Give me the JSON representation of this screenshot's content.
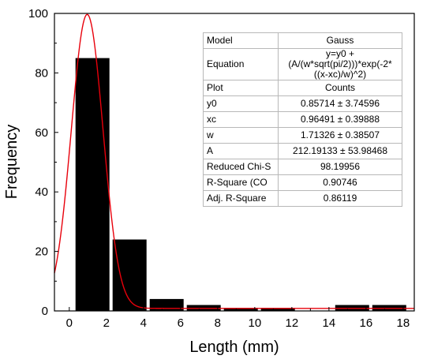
{
  "chart_data": {
    "type": "bar",
    "xlabel": "Length (mm)",
    "ylabel": "Frequency",
    "xlim": [
      -0.8,
      18.6
    ],
    "ylim": [
      0,
      100
    ],
    "xticks": [
      0,
      2,
      4,
      6,
      8,
      10,
      12,
      14,
      16,
      18
    ],
    "yticks": [
      0,
      20,
      40,
      60,
      80,
      100
    ],
    "bins": [
      {
        "start": 0.25,
        "end": 2.25,
        "value": 85
      },
      {
        "start": 2.25,
        "end": 4.25,
        "value": 24
      },
      {
        "start": 4.25,
        "end": 6.25,
        "value": 4
      },
      {
        "start": 6.25,
        "end": 8.25,
        "value": 2
      },
      {
        "start": 8.25,
        "end": 10.25,
        "value": 1
      },
      {
        "start": 10.25,
        "end": 12.25,
        "value": 1
      },
      {
        "start": 12.25,
        "end": 14.25,
        "value": 0
      },
      {
        "start": 14.25,
        "end": 16.25,
        "value": 2
      },
      {
        "start": 16.25,
        "end": 18.25,
        "value": 2
      }
    ],
    "fit": {
      "model": "Gauss",
      "y0": 0.85714,
      "xc": 0.96491,
      "w": 1.71326,
      "A": 212.19133,
      "color": "#e8000b"
    },
    "bar_color": "#000000",
    "grid": false
  },
  "fit_table": [
    {
      "key": "Model",
      "value": "Gauss"
    },
    {
      "key": "Equation",
      "value": "y=y0 + (A/(w*sqrt(pi/2)))*exp(-2*((x-xc)/w)^2)"
    },
    {
      "key": "Plot",
      "value": "Counts"
    },
    {
      "key": "y0",
      "value": "0.85714 ± 3.74596"
    },
    {
      "key": "xc",
      "value": "0.96491 ± 0.39888"
    },
    {
      "key": "w",
      "value": "1.71326 ± 0.38507"
    },
    {
      "key": "A",
      "value": "212.19133 ± 53.98468"
    },
    {
      "key": "Reduced Chi-S",
      "value": "98.19956"
    },
    {
      "key": "R-Square (CO",
      "value": "0.90746"
    },
    {
      "key": "Adj. R-Square",
      "value": "0.86119"
    }
  ]
}
